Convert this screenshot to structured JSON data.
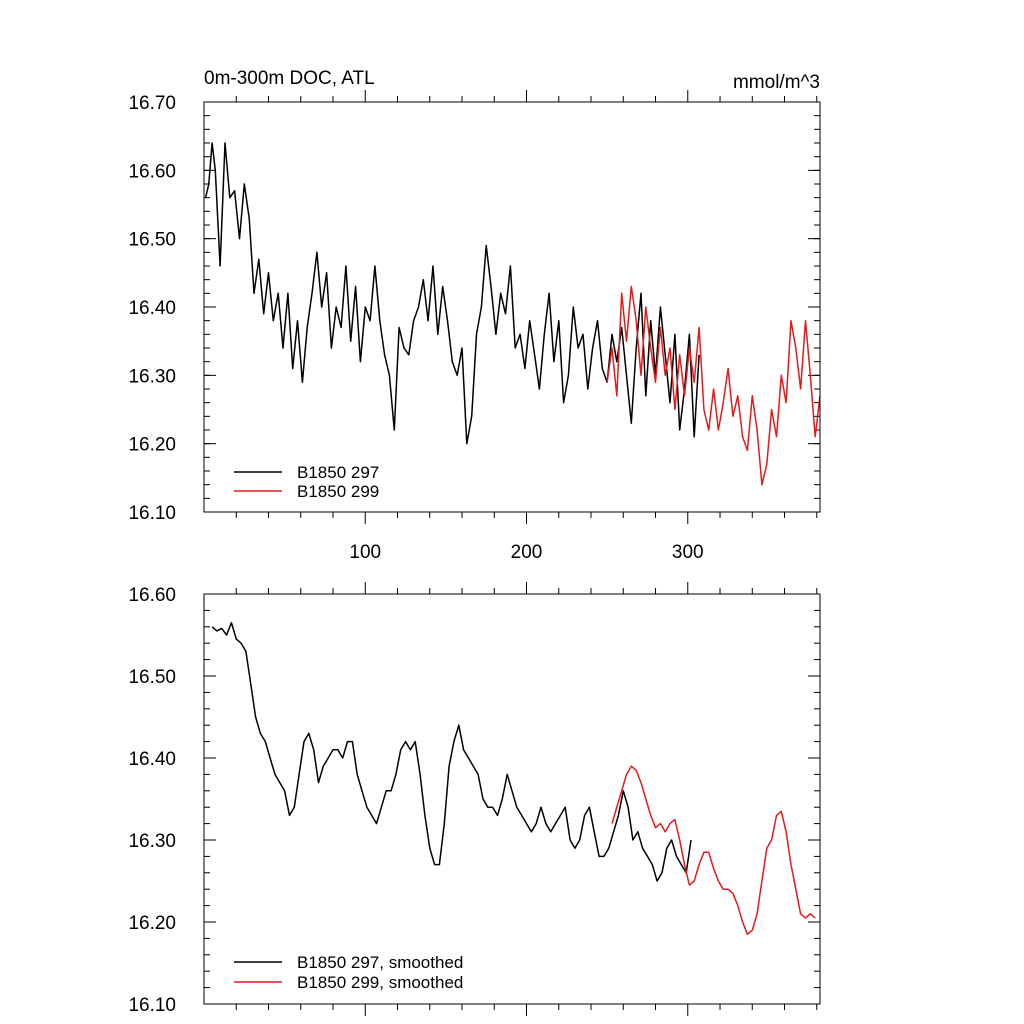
{
  "colors": {
    "run297": "#000000",
    "run299": "#e41a1c"
  },
  "chart_data": [
    {
      "type": "line",
      "title": "0m-300m DOC, ATL",
      "units": "mmol/m^3",
      "xlim": [
        0,
        382
      ],
      "ylim": [
        16.1,
        16.7
      ],
      "xticks": [
        100,
        200,
        300
      ],
      "xtick_labels": [
        "100",
        "200",
        "300"
      ],
      "yticks": [
        16.1,
        16.2,
        16.3,
        16.4,
        16.5,
        16.6,
        16.7
      ],
      "ytick_labels": [
        "16.10",
        "16.20",
        "16.30",
        "16.40",
        "16.50",
        "16.60",
        "16.70"
      ],
      "legend_position": "bottom-left",
      "series": [
        {
          "name": "B1850 297",
          "color": "#000000",
          "x": [
            1,
            3,
            5,
            7,
            10,
            13,
            16,
            19,
            22,
            25,
            28,
            31,
            34,
            37,
            40,
            43,
            46,
            49,
            52,
            55,
            58,
            61,
            64,
            67,
            70,
            73,
            76,
            79,
            82,
            85,
            88,
            91,
            94,
            97,
            100,
            103,
            106,
            109,
            112,
            115,
            118,
            121,
            124,
            127,
            130,
            133,
            136,
            139,
            142,
            145,
            148,
            151,
            154,
            157,
            160,
            163,
            166,
            169,
            172,
            175,
            178,
            181,
            184,
            187,
            190,
            193,
            196,
            199,
            202,
            205,
            208,
            211,
            214,
            217,
            220,
            223,
            226,
            229,
            232,
            235,
            238,
            241,
            244,
            247,
            250,
            253,
            256,
            259,
            262,
            265,
            268,
            271,
            274,
            277,
            280,
            283,
            286,
            289,
            292,
            295,
            298,
            301,
            304,
            307
          ],
          "y": [
            16.56,
            16.58,
            16.64,
            16.6,
            16.46,
            16.64,
            16.56,
            16.57,
            16.5,
            16.58,
            16.53,
            16.42,
            16.47,
            16.39,
            16.45,
            16.38,
            16.42,
            16.34,
            16.42,
            16.31,
            16.38,
            16.29,
            16.37,
            16.42,
            16.48,
            16.4,
            16.45,
            16.34,
            16.4,
            16.37,
            16.46,
            16.35,
            16.43,
            16.32,
            16.4,
            16.38,
            16.46,
            16.38,
            16.33,
            16.3,
            16.22,
            16.37,
            16.34,
            16.33,
            16.38,
            16.4,
            16.44,
            16.38,
            16.46,
            16.36,
            16.43,
            16.38,
            16.32,
            16.3,
            16.34,
            16.2,
            16.24,
            16.36,
            16.4,
            16.49,
            16.43,
            16.36,
            16.42,
            16.39,
            16.46,
            16.34,
            16.36,
            16.31,
            16.38,
            16.33,
            16.28,
            16.36,
            16.42,
            16.32,
            16.38,
            16.26,
            16.3,
            16.4,
            16.34,
            16.36,
            16.28,
            16.34,
            16.38,
            16.31,
            16.29,
            16.36,
            16.32,
            16.37,
            16.3,
            16.23,
            16.34,
            16.42,
            16.27,
            16.38,
            16.3,
            16.4,
            16.33,
            16.26,
            16.36,
            16.22,
            16.28,
            16.36,
            16.21,
            16.33
          ]
        },
        {
          "name": "B1850 299",
          "color": "#e41a1c",
          "x": [
            250,
            253,
            256,
            259,
            262,
            265,
            268,
            271,
            274,
            277,
            280,
            283,
            286,
            289,
            292,
            295,
            298,
            301,
            304,
            307,
            310,
            313,
            316,
            319,
            322,
            325,
            328,
            331,
            334,
            337,
            340,
            343,
            346,
            349,
            352,
            355,
            358,
            361,
            364,
            367,
            370,
            373,
            376,
            379,
            382
          ],
          "y": [
            16.29,
            16.34,
            16.27,
            16.42,
            16.35,
            16.43,
            16.38,
            16.3,
            16.4,
            16.34,
            16.29,
            16.37,
            16.3,
            16.34,
            16.25,
            16.33,
            16.27,
            16.34,
            16.29,
            16.37,
            16.25,
            16.22,
            16.28,
            16.22,
            16.26,
            16.31,
            16.24,
            16.27,
            16.21,
            16.19,
            16.27,
            16.22,
            16.14,
            16.17,
            16.25,
            16.21,
            16.3,
            16.26,
            16.38,
            16.34,
            16.28,
            16.38,
            16.3,
            16.21,
            16.27
          ]
        }
      ]
    },
    {
      "type": "line",
      "title": "",
      "xlim": [
        0,
        382
      ],
      "ylim": [
        16.1,
        16.6
      ],
      "yticks": [
        16.1,
        16.2,
        16.3,
        16.4,
        16.5,
        16.6
      ],
      "ytick_labels": [
        "16.10",
        "16.20",
        "16.30",
        "16.40",
        "16.50",
        "16.60"
      ],
      "legend_position": "bottom-left",
      "series": [
        {
          "name": "B1850 297, smoothed",
          "color": "#000000",
          "x": [
            5,
            8,
            11,
            14,
            17,
            20,
            23,
            26,
            29,
            32,
            35,
            38,
            41,
            44,
            47,
            50,
            53,
            56,
            59,
            62,
            65,
            68,
            71,
            74,
            77,
            80,
            83,
            86,
            89,
            92,
            95,
            98,
            101,
            104,
            107,
            110,
            113,
            116,
            119,
            122,
            125,
            128,
            131,
            134,
            137,
            140,
            143,
            146,
            149,
            152,
            155,
            158,
            161,
            164,
            167,
            170,
            173,
            176,
            179,
            182,
            185,
            188,
            191,
            194,
            197,
            200,
            203,
            206,
            209,
            212,
            215,
            218,
            221,
            224,
            227,
            230,
            233,
            236,
            239,
            242,
            245,
            248,
            251,
            254,
            257,
            260,
            263,
            266,
            269,
            272,
            275,
            278,
            281,
            284,
            287,
            290,
            293,
            296,
            299,
            302
          ],
          "y": [
            16.56,
            16.555,
            16.558,
            16.55,
            16.565,
            16.545,
            16.54,
            16.53,
            16.49,
            16.45,
            16.43,
            16.42,
            16.4,
            16.38,
            16.37,
            16.36,
            16.33,
            16.34,
            16.38,
            16.42,
            16.43,
            16.41,
            16.37,
            16.39,
            16.4,
            16.41,
            16.41,
            16.4,
            16.42,
            16.42,
            16.38,
            16.36,
            16.34,
            16.33,
            16.32,
            16.34,
            16.36,
            16.36,
            16.38,
            16.41,
            16.42,
            16.41,
            16.42,
            16.38,
            16.33,
            16.29,
            16.27,
            16.27,
            16.32,
            16.39,
            16.42,
            16.44,
            16.41,
            16.4,
            16.39,
            16.38,
            16.35,
            16.34,
            16.34,
            16.33,
            16.35,
            16.38,
            16.36,
            16.34,
            16.33,
            16.32,
            16.31,
            16.32,
            16.34,
            16.32,
            16.31,
            16.32,
            16.33,
            16.34,
            16.3,
            16.29,
            16.3,
            16.33,
            16.34,
            16.31,
            16.28,
            16.28,
            16.29,
            16.31,
            16.33,
            16.36,
            16.34,
            16.3,
            16.31,
            16.29,
            16.28,
            16.27,
            16.25,
            16.26,
            16.29,
            16.3,
            16.28,
            16.27,
            16.26,
            16.3
          ]
        },
        {
          "name": "B1850 299, smoothed",
          "color": "#e41a1c",
          "x": [
            253,
            256,
            259,
            262,
            265,
            268,
            271,
            274,
            277,
            280,
            283,
            286,
            289,
            292,
            295,
            298,
            301,
            304,
            307,
            310,
            313,
            316,
            319,
            322,
            325,
            328,
            331,
            334,
            337,
            340,
            343,
            346,
            349,
            352,
            355,
            358,
            361,
            364,
            367,
            370,
            373,
            376,
            379
          ],
          "y": [
            16.32,
            16.34,
            16.36,
            16.38,
            16.39,
            16.385,
            16.37,
            16.35,
            16.33,
            16.315,
            16.32,
            16.31,
            16.32,
            16.325,
            16.3,
            16.27,
            16.245,
            16.25,
            16.27,
            16.285,
            16.285,
            16.265,
            16.25,
            16.24,
            16.24,
            16.235,
            16.22,
            16.2,
            16.185,
            16.19,
            16.21,
            16.25,
            16.29,
            16.3,
            16.33,
            16.335,
            16.31,
            16.27,
            16.24,
            16.21,
            16.205,
            16.21,
            16.205
          ]
        }
      ]
    }
  ]
}
